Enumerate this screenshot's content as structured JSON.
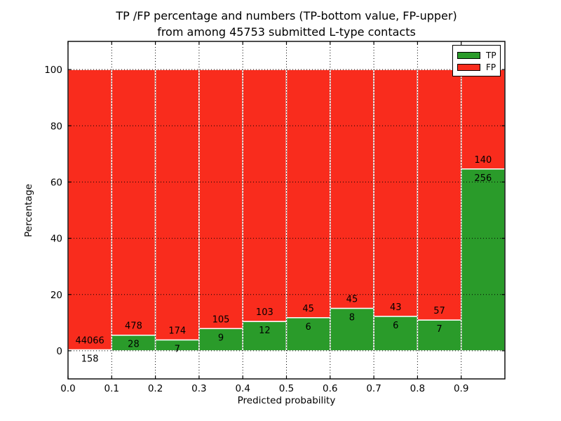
{
  "figure": {
    "title_line1": "TP /FP percentage and numbers (TP-bottom value, FP-upper)",
    "title_line2": "from among 45753 submitted L-type contacts"
  },
  "legend": {
    "position": "upper right",
    "entries": [
      {
        "label": "TP",
        "color": "#2a9b2a"
      },
      {
        "label": "FP",
        "color": "#f92c1d"
      }
    ]
  },
  "chart_data": {
    "type": "bar",
    "stacked": true,
    "normalized_to_percent": true,
    "title": "TP /FP percentage and numbers (TP-bottom value, FP-upper) from among 45753 submitted L-type contacts",
    "xlabel": "Predicted probability",
    "ylabel": "Percentage",
    "total_contacts": 45753,
    "bin_edges": [
      0.0,
      0.1,
      0.2,
      0.3,
      0.4,
      0.5,
      0.6,
      0.7,
      0.8,
      0.9,
      1.0
    ],
    "categories": [
      "0.0-0.1",
      "0.1-0.2",
      "0.2-0.3",
      "0.3-0.4",
      "0.4-0.5",
      "0.5-0.6",
      "0.6-0.7",
      "0.7-0.8",
      "0.8-0.9",
      "0.9-1.0"
    ],
    "series": [
      {
        "name": "TP",
        "color": "#2a9b2a",
        "position": "bottom",
        "values": [
          158,
          28,
          7,
          9,
          12,
          6,
          8,
          6,
          7,
          256
        ]
      },
      {
        "name": "FP",
        "color": "#f92c1d",
        "position": "top",
        "values": [
          44066,
          478,
          174,
          105,
          103,
          45,
          45,
          43,
          57,
          140
        ]
      }
    ],
    "x_tick_labels": [
      "0.0",
      "0.1",
      "0.2",
      "0.3",
      "0.4",
      "0.5",
      "0.6",
      "0.7",
      "0.8",
      "0.9"
    ],
    "y_tick_values": [
      0,
      20,
      40,
      60,
      80,
      100
    ],
    "y_tick_labels": [
      "0",
      "20",
      "40",
      "60",
      "80",
      "100"
    ],
    "xlim": [
      0.0,
      1.0
    ],
    "ylim": [
      -10,
      110
    ],
    "grid": "dotted",
    "bar_edge_color": "#ffffff",
    "axis_color": "#000000",
    "text_color": "#000000",
    "background_color": "#ffffff"
  }
}
